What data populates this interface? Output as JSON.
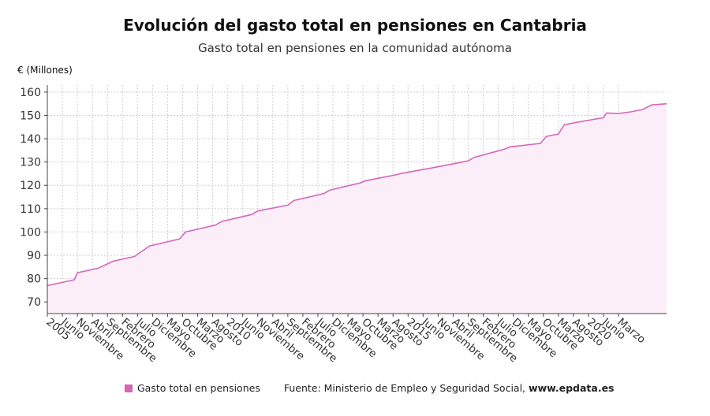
{
  "title": "Evolución del gasto total en pensiones en Cantabria",
  "subtitle": "Gasto total en pensiones en la comunidad autónoma",
  "unit_label": "€ (Millones)",
  "legend_label": "Gasto total en pensiones",
  "source_prefix": "Fuente: Ministerio de Empleo y Seguridad Social, ",
  "source_site": "www.epdata.es",
  "colors": {
    "line": "#d567b5",
    "fill": "#fbeef8",
    "grid": "#cfcfcf",
    "axis": "#444444"
  },
  "chart_data": {
    "type": "area",
    "title": "Evolución del gasto total en pensiones en Cantabria",
    "subtitle": "Gasto total en pensiones en la comunidad autónoma",
    "ylabel": "€ (Millones)",
    "xlabel": "",
    "ylim": [
      65,
      163
    ],
    "yticks": [
      70,
      80,
      90,
      100,
      110,
      120,
      130,
      140,
      150,
      160
    ],
    "grid": true,
    "legend": "bottom",
    "x_start": "2005-01",
    "x_end": "2022-03",
    "x_tick_labels": [
      "2005",
      "Junio",
      "Noviembre",
      "Abril",
      "Septiembre",
      "Febrero",
      "Julio",
      "Diciembre",
      "Mayo",
      "Octubre",
      "Marzo",
      "Agosto",
      "2010",
      "Junio",
      "Noviembre",
      "Abril",
      "Septiembre",
      "Febrero",
      "Julio",
      "Diciembre",
      "Mayo",
      "Octubre",
      "Marzo",
      "Agosto",
      "2015",
      "Junio",
      "Noviembre",
      "Abril",
      "Septiembre",
      "Febrero",
      "Julio",
      "Diciembre",
      "Mayo",
      "Octubre",
      "Marzo",
      "Agosto",
      "2020",
      "Junio",
      "Marzo"
    ],
    "series": [
      {
        "name": "Gasto total en pensiones",
        "points": [
          [
            "2005-01",
            77.0
          ],
          [
            "2005-10",
            79.5
          ],
          [
            "2005-11",
            82.5
          ],
          [
            "2006-06",
            84.5
          ],
          [
            "2006-11",
            87.5
          ],
          [
            "2007-06",
            89.5
          ],
          [
            "2007-11",
            94.0
          ],
          [
            "2008-09",
            97.0
          ],
          [
            "2008-11",
            100.0
          ],
          [
            "2009-09",
            103.0
          ],
          [
            "2009-11",
            104.5
          ],
          [
            "2010-09",
            107.5
          ],
          [
            "2010-11",
            109.0
          ],
          [
            "2011-09",
            111.5
          ],
          [
            "2011-11",
            113.5
          ],
          [
            "2012-09",
            116.5
          ],
          [
            "2012-11",
            118.0
          ],
          [
            "2013-09",
            121.0
          ],
          [
            "2013-11",
            122.0
          ],
          [
            "2014-09",
            124.5
          ],
          [
            "2014-11",
            125.2
          ],
          [
            "2015-09",
            127.5
          ],
          [
            "2016-09",
            130.5
          ],
          [
            "2016-11",
            132.0
          ],
          [
            "2017-09",
            135.5
          ],
          [
            "2017-11",
            136.5
          ],
          [
            "2018-09",
            138.0
          ],
          [
            "2018-11",
            141.0
          ],
          [
            "2019-03",
            142.0
          ],
          [
            "2019-05",
            146.0
          ],
          [
            "2019-09",
            147.0
          ],
          [
            "2020-06",
            149.0
          ],
          [
            "2020-07",
            151.0
          ],
          [
            "2020-11",
            150.8
          ],
          [
            "2021-03",
            151.5
          ],
          [
            "2021-07",
            152.5
          ],
          [
            "2021-10",
            154.5
          ],
          [
            "2022-03",
            155.0
          ]
        ]
      }
    ]
  }
}
